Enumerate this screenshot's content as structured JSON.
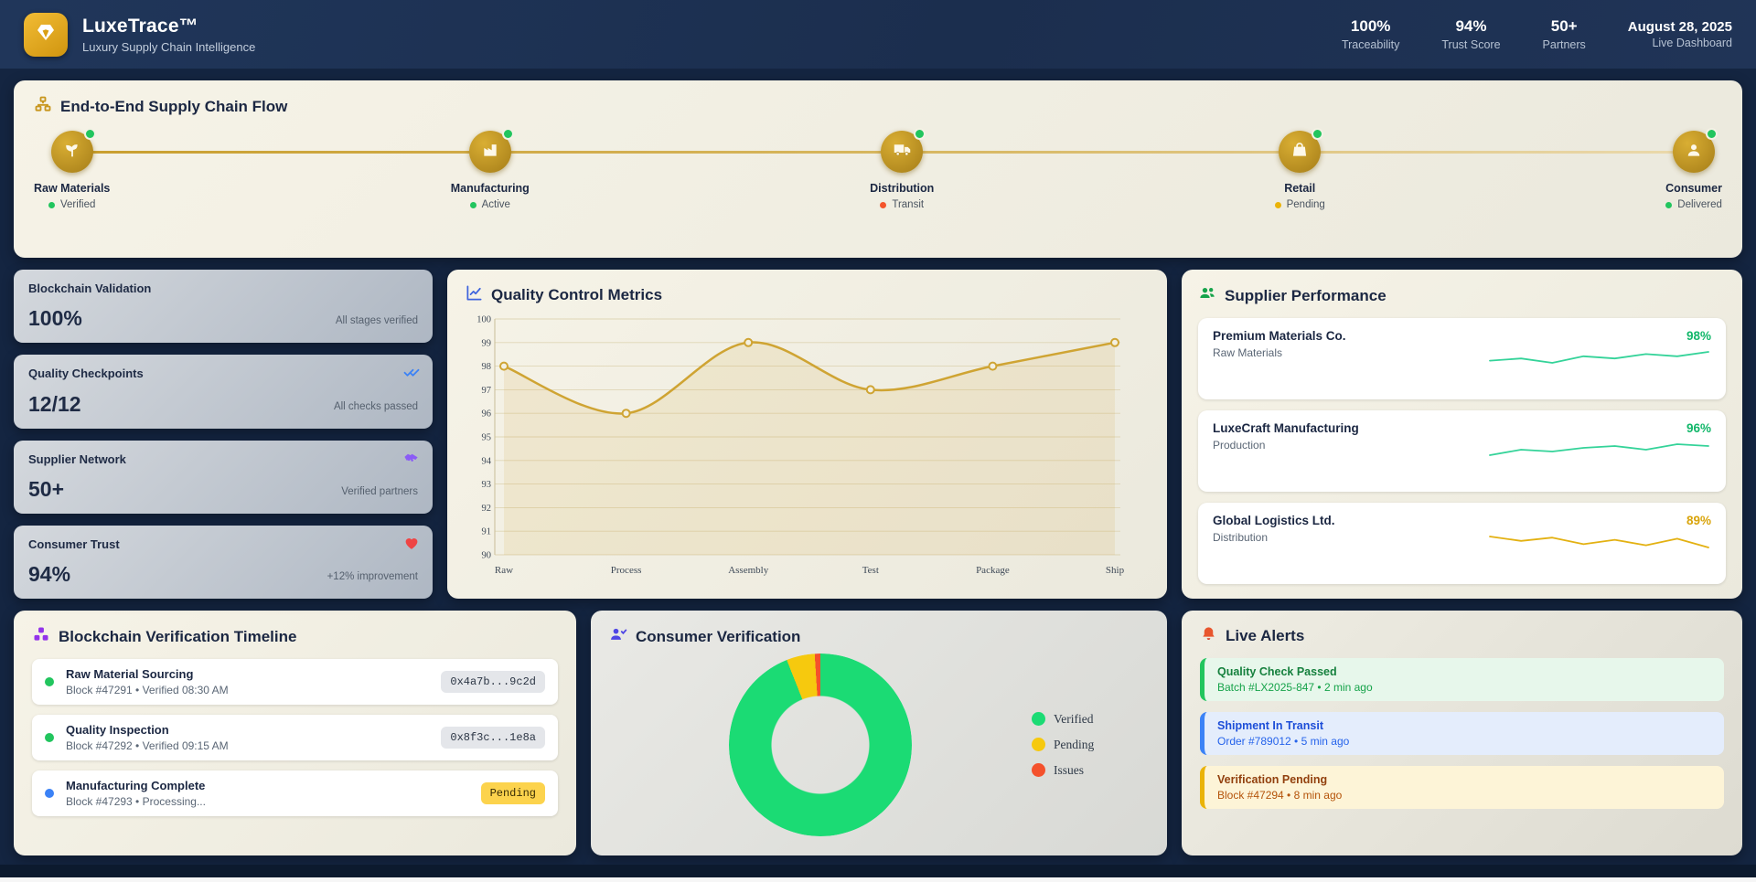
{
  "header": {
    "logo_icon": "gem-icon",
    "title": "LuxeTrace™",
    "subtitle": "Luxury Supply Chain Intelligence",
    "stats": [
      {
        "value": "100%",
        "label": "Traceability"
      },
      {
        "value": "94%",
        "label": "Trust Score"
      },
      {
        "value": "50+",
        "label": "Partners"
      }
    ],
    "date": "August 28, 2025",
    "date_label": "Live Dashboard"
  },
  "flow": {
    "title": "End-to-End Supply Chain Flow",
    "title_icon": "sitemap-icon",
    "stages": [
      {
        "name": "Raw Materials",
        "status": "Verified",
        "status_color": "#22c55e",
        "icon": "seedling-icon",
        "badge_color": "#22c55e"
      },
      {
        "name": "Manufacturing",
        "status": "Active",
        "status_color": "#22c55e",
        "icon": "factory-icon",
        "badge_color": "#22c55e"
      },
      {
        "name": "Distribution",
        "status": "Transit",
        "status_color": "#f4552c",
        "icon": "truck-icon",
        "badge_color": "#22c55e"
      },
      {
        "name": "Retail",
        "status": "Pending",
        "status_color": "#eab308",
        "icon": "store-icon",
        "badge_color": "#22c55e"
      },
      {
        "name": "Consumer",
        "status": "Delivered",
        "status_color": "#22c55e",
        "icon": "user-icon",
        "badge_color": "#22c55e"
      }
    ]
  },
  "stat_cards": [
    {
      "title": "Blockchain Validation",
      "value": "100%",
      "note": "All stages verified"
    },
    {
      "title": "Quality Checkpoints",
      "value": "12/12",
      "note": "All checks passed",
      "icon": "double-check-icon",
      "icon_color": "#3b82f6"
    },
    {
      "title": "Supplier Network",
      "value": "50+",
      "note": "Verified partners",
      "icon": "handshake-icon",
      "icon_color": "#8b5cf6"
    },
    {
      "title": "Consumer Trust",
      "value": "94%",
      "note": "+12% improvement",
      "icon": "heart-icon",
      "icon_color": "#ef4444"
    }
  ],
  "suppliers": {
    "title": "Supplier Performance",
    "title_icon": "users-icon",
    "rows": [
      {
        "name": "Premium Materials Co.",
        "category": "Raw Materials",
        "score": "98%",
        "score_color": "#12b76a",
        "spark_color": "#34d399",
        "spark": [
          98.2,
          98.3,
          98.1,
          98.4,
          98.3,
          98.5,
          98.4,
          98.6
        ]
      },
      {
        "name": "LuxeCraft Manufacturing",
        "category": "Production",
        "score": "96%",
        "score_color": "#12b76a",
        "spark_color": "#34d399",
        "spark": [
          95.6,
          95.9,
          95.8,
          96.0,
          96.1,
          95.9,
          96.2,
          96.1
        ]
      },
      {
        "name": "Global Logistics Ltd.",
        "category": "Distribution",
        "score": "89%",
        "score_color": "#d9a40b",
        "spark_color": "#e3b112",
        "spark": [
          89.6,
          89.2,
          89.5,
          88.9,
          89.3,
          88.8,
          89.4,
          88.6
        ]
      }
    ]
  },
  "timeline": {
    "title": "Blockchain Verification Timeline",
    "title_icon": "blocks-icon",
    "entries": [
      {
        "title": "Raw Material Sourcing",
        "subtitle": "Block #47291 • Verified 08:30 AM",
        "chip": "0x4a7b...9c2d",
        "chip_style": "hash",
        "dot_color": "#22c55e"
      },
      {
        "title": "Quality Inspection",
        "subtitle": "Block #47292 • Verified 09:15 AM",
        "chip": "0x8f3c...1e8a",
        "chip_style": "hash",
        "dot_color": "#22c55e"
      },
      {
        "title": "Manufacturing Complete",
        "subtitle": "Block #47293 • Processing...",
        "chip": "Pending",
        "chip_style": "pending",
        "dot_color": "#3b82f6"
      }
    ]
  },
  "verification": {
    "title": "Consumer Verification",
    "title_icon": "user-check-icon"
  },
  "alerts": {
    "title": "Live Alerts",
    "title_icon": "bell-icon",
    "items": [
      {
        "title": "Quality Check Passed",
        "subtitle": "Batch #LX2025-847 • 2 min ago",
        "type": "success"
      },
      {
        "title": "Shipment In Transit",
        "subtitle": "Order #789012 • 5 min ago",
        "type": "info"
      },
      {
        "title": "Verification Pending",
        "subtitle": "Block #47294 • 8 min ago",
        "type": "warning"
      }
    ]
  },
  "chart_data": [
    {
      "type": "line",
      "title": "Quality Control Metrics",
      "title_icon": "chart-line-icon",
      "categories": [
        "Raw",
        "Process",
        "Assembly",
        "Test",
        "Package",
        "Ship"
      ],
      "values": [
        98,
        96,
        99,
        97,
        98,
        99
      ],
      "ylim": [
        90,
        100
      ],
      "ytick_step": 1,
      "grid": true,
      "line_color": "#cfa433",
      "fill_color": "rgba(209,166,51,0.13)",
      "point_fill": "#f3f0e2"
    },
    {
      "type": "donut",
      "title": "Consumer Verification",
      "labels": [
        "Verified",
        "Pending",
        "Issues"
      ],
      "values": [
        94,
        5,
        1
      ],
      "colors": [
        "#1bdb74",
        "#f6c90e",
        "#f4512c"
      ],
      "legend_position": "right"
    }
  ]
}
